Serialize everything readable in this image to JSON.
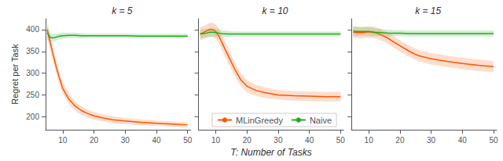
{
  "chart_data": [
    {
      "type": "line",
      "title": "k = 5",
      "ylabel": "Regret per Task",
      "x": [
        5,
        6,
        7,
        8,
        9,
        10,
        12,
        14,
        16,
        18,
        20,
        23,
        26,
        30,
        35,
        40,
        45,
        50
      ],
      "series": [
        {
          "name": "MLinGreedy",
          "color": "#FF5500",
          "values": [
            400,
            370,
            340,
            312,
            287,
            265,
            240,
            224,
            214,
            207,
            202,
            197,
            193,
            190,
            187,
            185,
            183,
            181
          ],
          "std": [
            18,
            17,
            16,
            15,
            14,
            13,
            12,
            11,
            10,
            9,
            9,
            8,
            8,
            7,
            7,
            6,
            6,
            6
          ]
        },
        {
          "name": "Naive",
          "color": "#22AA22",
          "values": [
            393,
            382,
            381,
            383,
            385,
            386,
            387,
            387,
            386,
            386,
            386,
            386,
            386,
            386,
            385,
            385,
            385,
            385
          ],
          "std": [
            15,
            10,
            9,
            8,
            7,
            7,
            6,
            6,
            6,
            5,
            5,
            5,
            5,
            5,
            5,
            5,
            5,
            5
          ]
        }
      ],
      "xlim": [
        4.5,
        51
      ],
      "xticks": [
        10,
        20,
        30,
        40,
        50
      ],
      "ylim": [
        170,
        425
      ],
      "yticks": [
        200,
        250,
        300,
        350,
        400
      ],
      "grid": false
    },
    {
      "type": "line",
      "title": "k = 10",
      "xlabel": "T: Number of Tasks",
      "x": [
        5,
        6,
        7,
        8,
        9,
        10,
        11,
        12,
        14,
        16,
        18,
        20,
        23,
        26,
        30,
        35,
        40,
        45,
        50
      ],
      "series": [
        {
          "name": "MLinGreedy",
          "color": "#FF5500",
          "values": [
            390,
            393,
            397,
            400,
            400,
            396,
            385,
            370,
            340,
            310,
            285,
            270,
            260,
            255,
            250,
            248,
            247,
            246,
            246
          ],
          "std": [
            15,
            15,
            15,
            16,
            16,
            17,
            17,
            17,
            17,
            16,
            15,
            14,
            13,
            12,
            11,
            11,
            11,
            11,
            11
          ]
        },
        {
          "name": "Naive",
          "color": "#22AA22",
          "values": [
            390,
            391,
            392,
            394,
            394,
            393,
            392,
            391,
            390,
            390,
            390,
            390,
            390,
            390,
            390,
            390,
            390,
            390,
            390
          ],
          "std": [
            10,
            10,
            10,
            11,
            11,
            10,
            9,
            8,
            7,
            6,
            6,
            6,
            6,
            6,
            6,
            6,
            6,
            6,
            6
          ]
        }
      ],
      "xlim": [
        4.5,
        51
      ],
      "xticks": [
        10,
        20,
        30,
        40,
        50
      ],
      "ylim": [
        170,
        425
      ],
      "yticks": [
        200,
        250,
        300,
        350,
        400
      ],
      "grid": false,
      "legend": "bottom",
      "tick_labels": "x"
    },
    {
      "type": "line",
      "title": "k = 15",
      "x": [
        5,
        6,
        7,
        8,
        9,
        10,
        12,
        14,
        16,
        18,
        20,
        23,
        26,
        30,
        35,
        40,
        45,
        50
      ],
      "series": [
        {
          "name": "MLinGreedy",
          "color": "#FF5500",
          "values": [
            394,
            393,
            393,
            393,
            394,
            395,
            393,
            388,
            381,
            372,
            363,
            350,
            340,
            333,
            327,
            322,
            318,
            315
          ],
          "std": [
            13,
            13,
            13,
            13,
            13,
            13,
            13,
            13,
            13,
            13,
            13,
            13,
            13,
            13,
            13,
            13,
            13,
            13
          ]
        },
        {
          "name": "Naive",
          "color": "#22AA22",
          "values": [
            397,
            396,
            396,
            396,
            396,
            396,
            394,
            393,
            392,
            392,
            392,
            391,
            391,
            391,
            391,
            391,
            391,
            391
          ],
          "std": [
            11,
            11,
            10,
            10,
            10,
            10,
            9,
            8,
            8,
            7,
            7,
            7,
            7,
            7,
            7,
            7,
            7,
            7
          ]
        }
      ],
      "xlim": [
        4.5,
        51
      ],
      "xticks": [
        10,
        20,
        30,
        40,
        50
      ],
      "ylim": [
        170,
        425
      ],
      "yticks": [
        200,
        250,
        300,
        350,
        400
      ],
      "grid": false,
      "tick_labels": "x"
    }
  ]
}
